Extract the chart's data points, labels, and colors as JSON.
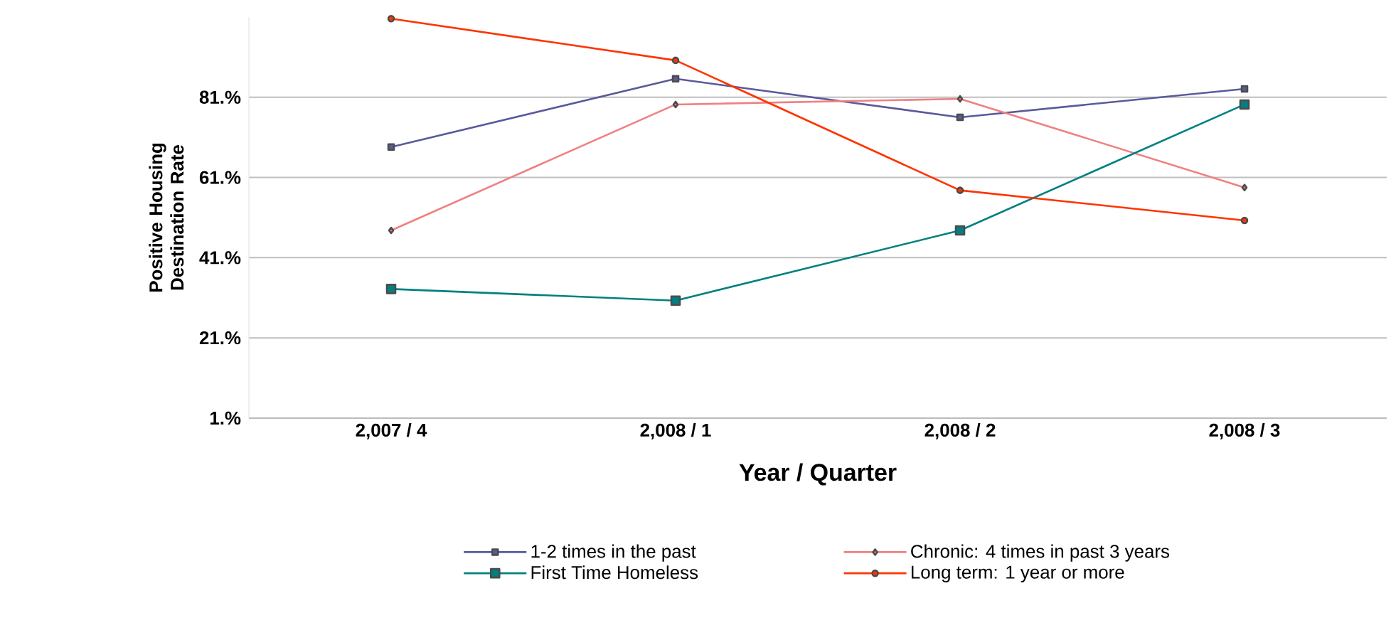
{
  "chart_data": {
    "type": "line",
    "xlabel": "Year / Quarter",
    "ylabel": "Positive Housing Destination Rate",
    "categories": [
      "2,007 / 4",
      "2,008 / 1",
      "2,008 / 2",
      "2,008 / 3"
    ],
    "series": [
      {
        "name": "1-2 times in the past",
        "color": "#5a5a9c",
        "marker": "square",
        "values": [
          68.6,
          85.6,
          76.0,
          83.1
        ]
      },
      {
        "name": "Chronic: 4 times in past 3 years",
        "color": "#f08080",
        "marker": "diamond",
        "values": [
          47.8,
          79.2,
          80.6,
          58.5
        ]
      },
      {
        "name": "First Time Homeless",
        "color": "#008080",
        "marker": "square",
        "values": [
          33.2,
          30.3,
          47.8,
          79.2
        ]
      },
      {
        "name": "Long term: 1 year or more",
        "color": "#ff3300",
        "marker": "circle",
        "values": [
          100.6,
          90.2,
          57.8,
          50.3
        ]
      }
    ],
    "ylim": [
      1,
      101
    ],
    "yticks": [
      {
        "value": 1,
        "label": "1.%"
      },
      {
        "value": 21,
        "label": "21.%"
      },
      {
        "value": 41,
        "label": "41.%"
      },
      {
        "value": 61,
        "label": "61.%"
      },
      {
        "value": 81,
        "label": "81.%"
      }
    ],
    "grid": "y",
    "legend": "bottom",
    "line_style": "solid"
  }
}
